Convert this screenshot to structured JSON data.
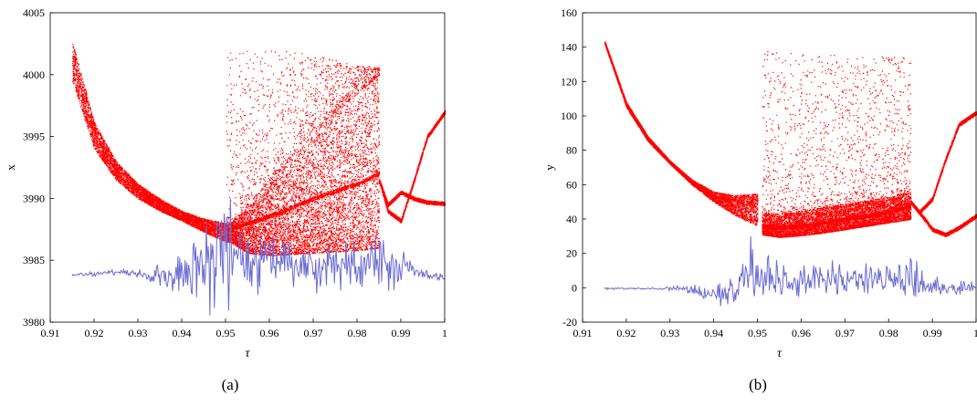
{
  "chart_data": [
    {
      "type": "scatter",
      "panel_label": "(a)",
      "xlabel": "τ",
      "ylabel": "x",
      "xlim": [
        0.91,
        1.0
      ],
      "ylim": [
        3980,
        4005
      ],
      "xticks": [
        0.91,
        0.92,
        0.93,
        0.94,
        0.95,
        0.96,
        0.97,
        0.98,
        0.99,
        1.0
      ],
      "xtick_labels": [
        "0.91",
        "0.92",
        "0.93",
        "0.94",
        "0.95",
        "0.96",
        "0.97",
        "0.98",
        "0.99",
        "1"
      ],
      "yticks": [
        3980,
        3985,
        3990,
        3995,
        4000,
        4005
      ],
      "ytick_labels": [
        "3980",
        "3985",
        "3990",
        "3995",
        "4000",
        "4005"
      ],
      "grid": false,
      "series": [
        {
          "kind": "bifurcation-scatter",
          "color": "#ff0000",
          "periodic_branch_1": {
            "x": [
              0.915,
              0.92,
              0.925,
              0.93,
              0.935,
              0.94,
              0.945,
              0.95
            ],
            "y_lo": [
              3999.5,
              3994.0,
              3991.5,
              3990.0,
              3989.0,
              3988.2,
              3987.3,
              3986.5
            ],
            "y_hi": [
              4002.7,
              3996.2,
              3993.0,
              3991.2,
              3990.0,
              3989.0,
              3988.4,
              3988.0
            ]
          },
          "chaotic_region": {
            "x_start": 0.95,
            "x_end": 0.985,
            "x": [
              0.951,
              0.955,
              0.96,
              0.965,
              0.97,
              0.975,
              0.98,
              0.985
            ],
            "y_min": [
              3986.5,
              3985.6,
              3985.4,
              3985.5,
              3985.6,
              3985.7,
              3985.8,
              3986.0
            ],
            "y_max": [
              4002.0,
              4002.0,
              4002.0,
              4001.9,
              4001.6,
              4001.2,
              4000.8,
              4000.6
            ],
            "upper_edge": [
              3988.0,
              3989.5,
              3991.5,
              3993.5,
              3995.5,
              3997.0,
              3998.5,
              4000.0
            ],
            "mid_line": [
              3987.5,
              3988.0,
              3988.6,
              3989.3,
              3990.0,
              3990.6,
              3991.2,
              3992.0
            ]
          },
          "post_branch_upper": {
            "x": [
              0.985,
              0.987,
              0.99,
              0.993,
              0.996,
              1.0
            ],
            "y": [
              3991.5,
              3989.0,
              3988.2,
              3991.5,
              3995.0,
              3997.0
            ]
          },
          "post_branch_lower": {
            "x": [
              0.985,
              0.987,
              0.99,
              0.993,
              0.996,
              1.0
            ],
            "y": [
              3991.5,
              3989.5,
              3990.5,
              3990.0,
              3989.7,
              3989.6
            ]
          }
        },
        {
          "kind": "line",
          "color": "#6b6bd4",
          "x_start": 0.915,
          "x_end": 1.0,
          "baseline": [
            3983.8,
            3983.9,
            3984.1,
            3983.8,
            3983.6,
            3984.5,
            3986.0,
            3984.8,
            3984.8,
            3984.6,
            3984.6,
            3984.6,
            3985.0,
            3984.5,
            3983.9,
            3983.6
          ],
          "amplitude": [
            0.08,
            0.08,
            0.1,
            0.3,
            0.6,
            1.4,
            2.5,
            1.2,
            1.0,
            0.9,
            0.9,
            1.0,
            1.4,
            0.8,
            0.3,
            0.15
          ]
        }
      ]
    },
    {
      "type": "scatter",
      "panel_label": "(b)",
      "xlabel": "τ",
      "ylabel": "y",
      "xlim": [
        0.91,
        1.0
      ],
      "ylim": [
        -20,
        160
      ],
      "xticks": [
        0.91,
        0.92,
        0.93,
        0.94,
        0.95,
        0.96,
        0.97,
        0.98,
        0.99,
        1.0
      ],
      "xtick_labels": [
        "0.91",
        "0.92",
        "0.93",
        "0.94",
        "0.95",
        "0.96",
        "0.97",
        "0.98",
        "0.99",
        "1"
      ],
      "yticks": [
        -20,
        0,
        20,
        40,
        60,
        80,
        100,
        120,
        140,
        160
      ],
      "ytick_labels": [
        "-20",
        "0",
        "20",
        "40",
        "60",
        "80",
        "100",
        "120",
        "140",
        "160"
      ],
      "grid": false,
      "series": [
        {
          "kind": "bifurcation-scatter",
          "color": "#ff0000",
          "periodic_branch_1": {
            "x": [
              0.915,
              0.92,
              0.925,
              0.93,
              0.935,
              0.94,
              0.945,
              0.95
            ],
            "y_lo": [
              142.0,
              105.0,
              85.0,
              72.0,
              60.0,
              50.0,
              42.0,
              36.0
            ],
            "y_hi": [
              144.0,
              108.0,
              88.0,
              74.0,
              63.0,
              56.0,
              54.0,
              55.0
            ]
          },
          "chaotic_region": {
            "x_start": 0.951,
            "x_end": 0.985,
            "x": [
              0.951,
              0.955,
              0.96,
              0.965,
              0.97,
              0.975,
              0.98,
              0.985
            ],
            "y_min": [
              31.0,
              29.5,
              30.5,
              32.0,
              34.0,
              36.0,
              38.0,
              40.0
            ],
            "y_max": [
              138.0,
              137.0,
              137.0,
              136.0,
              136.0,
              135.0,
              135.0,
              134.0
            ],
            "upper_edge": [
              44.0,
              43.0,
              45.0,
              47.0,
              49.0,
              51.0,
              53.0,
              56.0
            ],
            "mid_line": [
              36.0,
              35.0,
              36.0,
              38.0,
              40.0,
              42.0,
              44.0,
              48.0
            ]
          },
          "post_branch_upper": {
            "x": [
              0.985,
              0.987,
              0.99,
              0.993,
              0.996,
              1.0
            ],
            "y": [
              50.0,
              44.0,
              52.0,
              75.0,
              95.0,
              102.0
            ]
          },
          "post_branch_lower": {
            "x": [
              0.985,
              0.987,
              0.99,
              0.993,
              0.996,
              1.0
            ],
            "y": [
              50.0,
              44.0,
              34.0,
              31.0,
              35.0,
              42.0
            ]
          }
        },
        {
          "kind": "line",
          "color": "#6b6bd4",
          "x_start": 0.915,
          "x_end": 1.0,
          "baseline": [
            -0.5,
            -0.5,
            -0.5,
            -0.5,
            -2.0,
            -4.0,
            10.0,
            2.0,
            4.0,
            4.0,
            5.0,
            4.0,
            8.0,
            2.0,
            -0.5,
            0.0
          ],
          "amplitude": [
            0.3,
            0.3,
            0.3,
            0.8,
            2.0,
            4.0,
            10.0,
            6.0,
            5.0,
            5.0,
            5.0,
            5.0,
            7.0,
            3.0,
            1.5,
            2.0
          ]
        }
      ]
    }
  ]
}
